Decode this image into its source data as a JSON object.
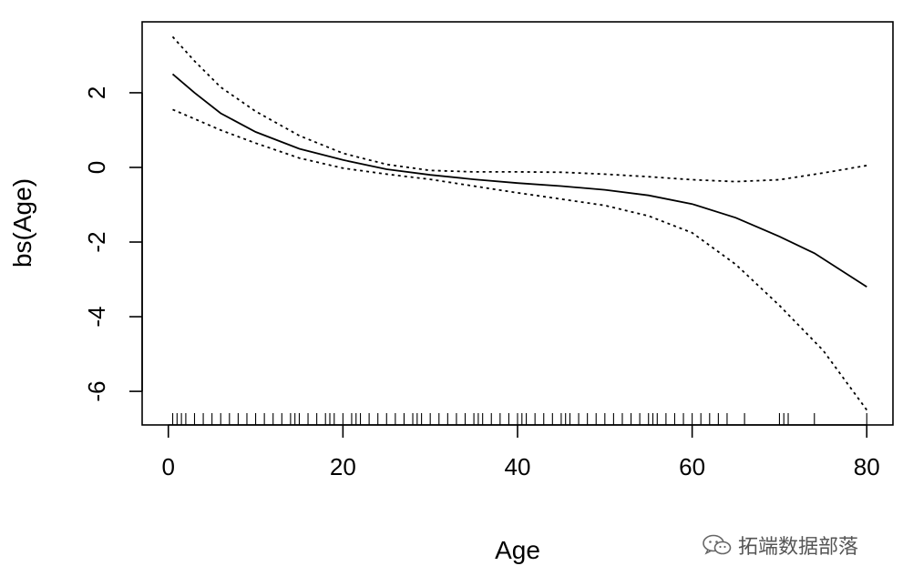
{
  "chart_data": {
    "type": "line",
    "title": "",
    "xlabel": "Age",
    "ylabel": "bs(Age)",
    "xlim": [
      -3,
      83
    ],
    "ylim": [
      -6.9,
      3.9
    ],
    "x_ticks": [
      0,
      20,
      40,
      60,
      80
    ],
    "y_ticks": [
      2,
      0,
      -2,
      -4,
      -6
    ],
    "grid": false,
    "legend": "none",
    "series": [
      {
        "style": "solid",
        "x": [
          0.5,
          3,
          6,
          10,
          15,
          20,
          25,
          30,
          35,
          40,
          45,
          50,
          55,
          60,
          65,
          70,
          74,
          80
        ],
        "y": [
          2.5,
          2.0,
          1.45,
          0.95,
          0.5,
          0.2,
          -0.05,
          -0.2,
          -0.32,
          -0.42,
          -0.5,
          -0.6,
          -0.75,
          -0.98,
          -1.35,
          -1.85,
          -2.3,
          -3.2
        ]
      },
      {
        "style": "dotted",
        "x": [
          0.5,
          3,
          6,
          10,
          15,
          20,
          25,
          30,
          35,
          40,
          45,
          50,
          55,
          60,
          65,
          70,
          75,
          80
        ],
        "y": [
          3.5,
          2.85,
          2.15,
          1.5,
          0.85,
          0.38,
          0.08,
          -0.08,
          -0.12,
          -0.12,
          -0.13,
          -0.18,
          -0.25,
          -0.33,
          -0.38,
          -0.33,
          -0.15,
          0.05
        ]
      },
      {
        "style": "dotted",
        "x": [
          0.5,
          3,
          6,
          10,
          15,
          20,
          25,
          30,
          35,
          40,
          45,
          50,
          55,
          60,
          65,
          70,
          75,
          80
        ],
        "y": [
          1.55,
          1.3,
          1.0,
          0.65,
          0.25,
          -0.02,
          -0.18,
          -0.32,
          -0.5,
          -0.68,
          -0.85,
          -1.02,
          -1.3,
          -1.75,
          -2.6,
          -3.7,
          -4.9,
          -6.5
        ]
      }
    ],
    "rug": [
      0.5,
      1,
      1.5,
      2,
      3,
      4,
      5,
      6,
      7,
      8,
      9,
      10,
      11,
      12,
      13,
      14,
      14.5,
      15,
      16,
      17,
      18,
      18.5,
      19,
      20,
      21,
      21.5,
      22,
      23,
      24,
      25,
      26,
      27,
      28,
      28.5,
      29,
      30,
      31,
      32,
      33,
      34,
      35,
      35.5,
      36,
      37,
      38,
      39,
      40,
      40.5,
      41,
      42,
      43,
      44,
      45,
      45.5,
      46,
      47,
      48,
      49,
      50,
      51,
      52,
      53,
      54,
      55,
      55.5,
      56,
      57,
      58,
      59,
      60,
      61,
      62,
      63,
      64,
      66,
      70,
      70.5,
      71,
      74,
      80
    ]
  },
  "watermark": {
    "text": "拓端数据部落",
    "icon": "wechat-icon"
  }
}
